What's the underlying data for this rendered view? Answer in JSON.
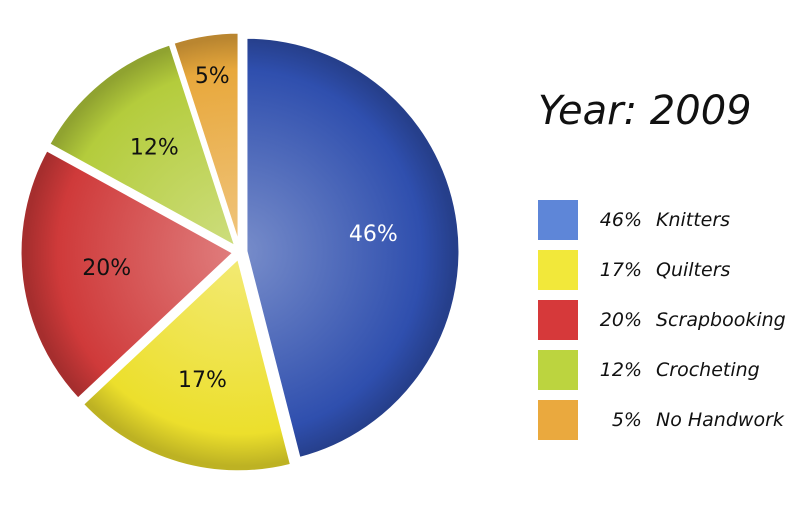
{
  "chart_data": {
    "type": "pie",
    "title": "Year: 2009",
    "categories": [
      "Knitters",
      "Quilters",
      "Scrapbooking",
      "Crocheting",
      "No Handwork"
    ],
    "values": [
      46,
      17,
      20,
      12,
      5
    ],
    "slice_labels": [
      "46%",
      "17%",
      "20%",
      "12%",
      "5%"
    ],
    "legend": [
      {
        "pct": "46%",
        "name": "Knitters"
      },
      {
        "pct": "17%",
        "name": "Quilters"
      },
      {
        "pct": "20%",
        "name": "Scrapbooking"
      },
      {
        "pct": "12%",
        "name": "Crocheting"
      },
      {
        "pct": "5%",
        "name": "No Handwork"
      }
    ],
    "colors": [
      "#2f4fae",
      "#ecdf2c",
      "#cf3a3a",
      "#b4cc3c",
      "#e8a83c"
    ],
    "legend_colors": [
      "#5e86d8",
      "#f2e83a",
      "#d6393a",
      "#bcd43f",
      "#eaa93e"
    ],
    "legend_placement": "right",
    "start_angle_deg": 0,
    "direction": "clockwise"
  }
}
